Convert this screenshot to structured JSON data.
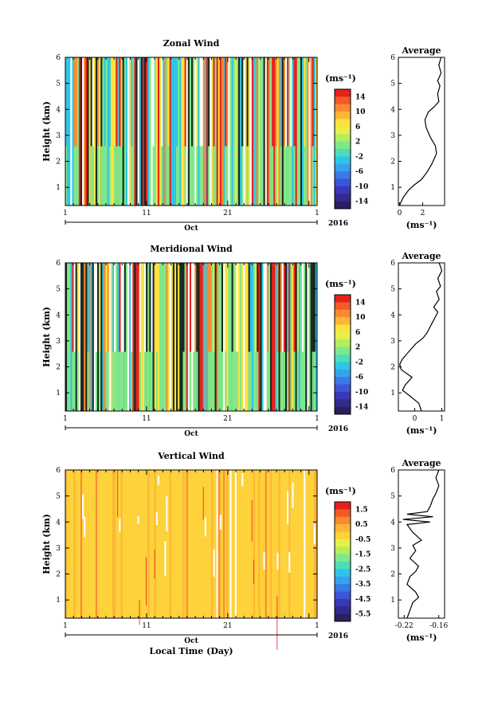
{
  "chart_data": [
    {
      "type": "heatmap",
      "key": "zonal",
      "title": "Zonal Wind",
      "ylabel": "Height (km)",
      "xlabel": "",
      "ylim": [
        0.3,
        6
      ],
      "yticks": [
        "1",
        "2",
        "3",
        "4",
        "5",
        "6"
      ],
      "xticks": [
        "1",
        "11",
        "21",
        "1"
      ],
      "month_label": "Oct",
      "year_label": "2016",
      "colorbar": {
        "unit": "(ms⁻¹)",
        "range": [
          -16,
          16
        ],
        "ticks": [
          "14",
          "10",
          "6",
          "2",
          "-2",
          "-6",
          "-10",
          "-14"
        ],
        "colors": [
          "#e8201c",
          "#f55a25",
          "#fb8a2f",
          "#fdb636",
          "#fde23d",
          "#e6f048",
          "#b4ee5c",
          "#7ee88a",
          "#4fdcb9",
          "#2ec6e6",
          "#35a2f0",
          "#3a7ae8",
          "#3c55d6",
          "#3a38b8",
          "#322a8e",
          "#2a2060"
        ]
      },
      "average_profile": {
        "title": "Average",
        "xlabel": "(ms⁻¹)",
        "xlim": [
          -0.1,
          3.9
        ],
        "xticks": [
          "0",
          "2"
        ],
        "heights": [
          0.3,
          0.6,
          0.9,
          1.1,
          1.3,
          1.6,
          1.9,
          2.1,
          2.3,
          2.6,
          2.9,
          3.1,
          3.3,
          3.6,
          3.9,
          4.1,
          4.3,
          4.6,
          4.9,
          5.1,
          5.4,
          5.7,
          6.0
        ],
        "values": [
          0.0,
          0.3,
          0.8,
          1.3,
          1.9,
          2.4,
          2.8,
          3.0,
          3.2,
          3.1,
          2.7,
          2.5,
          2.3,
          2.2,
          2.5,
          3.0,
          3.4,
          3.3,
          3.5,
          3.3,
          3.6,
          3.4,
          3.6
        ]
      }
    },
    {
      "type": "heatmap",
      "key": "meridional",
      "title": "Meridional Wind",
      "ylabel": "Height (km)",
      "xlabel": "",
      "ylim": [
        0.3,
        6
      ],
      "yticks": [
        "1",
        "2",
        "3",
        "4",
        "5",
        "6"
      ],
      "xticks": [
        "1",
        "11",
        "21",
        "1"
      ],
      "month_label": "Oct",
      "year_label": "2016",
      "colorbar": {
        "unit": "(ms⁻¹)",
        "range": [
          -16,
          16
        ],
        "ticks": [
          "14",
          "10",
          "6",
          "2",
          "-2",
          "-6",
          "-10",
          "-14"
        ],
        "colors": [
          "#e8201c",
          "#f55a25",
          "#fb8a2f",
          "#fdb636",
          "#fde23d",
          "#e6f048",
          "#b4ee5c",
          "#7ee88a",
          "#4fdcb9",
          "#2ec6e6",
          "#35a2f0",
          "#3a7ae8",
          "#3c55d6",
          "#3a38b8",
          "#322a8e",
          "#2a2060"
        ]
      },
      "average_profile": {
        "title": "Average",
        "xlabel": "(ms⁻¹)",
        "xlim": [
          -0.6,
          1.1
        ],
        "xticks": [
          "0",
          "1"
        ],
        "heights": [
          0.3,
          0.6,
          0.9,
          1.1,
          1.3,
          1.6,
          1.9,
          2.1,
          2.3,
          2.6,
          2.9,
          3.1,
          3.3,
          3.6,
          3.9,
          4.1,
          4.3,
          4.6,
          4.9,
          5.1,
          5.4,
          5.7,
          6.0
        ],
        "values": [
          0.25,
          0.15,
          -0.2,
          -0.45,
          -0.35,
          -0.1,
          -0.5,
          -0.55,
          -0.45,
          -0.2,
          0.05,
          0.3,
          0.45,
          0.6,
          0.75,
          0.85,
          0.7,
          0.9,
          0.8,
          0.95,
          0.85,
          1.0,
          0.9
        ]
      }
    },
    {
      "type": "heatmap",
      "key": "vertical",
      "title": "Vertical Wind",
      "ylabel": "Height (km)",
      "xlabel": "Local Time (Day)",
      "ylim": [
        0.3,
        6
      ],
      "yticks": [
        "1",
        "2",
        "3",
        "4",
        "5",
        "6"
      ],
      "xticks": [
        "1",
        "11",
        "21",
        "1"
      ],
      "month_label": "Oct",
      "year_label": "2016",
      "colorbar": {
        "unit": "(ms⁻¹)",
        "range": [
          -6,
          2
        ],
        "ticks": [
          "1.5",
          "0.5",
          "-0.5",
          "-1.5",
          "-2.5",
          "-3.5",
          "-4.5",
          "-5.5"
        ],
        "colors": [
          "#e8201c",
          "#f55a25",
          "#fb8a2f",
          "#fdb636",
          "#fdd23a",
          "#e6f048",
          "#b4ee5c",
          "#7ee88a",
          "#4fdcb9",
          "#2ec6e6",
          "#35a2f0",
          "#3a7ae8",
          "#3c55d6",
          "#3a38b8",
          "#322a8e",
          "#2a2060"
        ]
      },
      "average_profile": {
        "title": "Average",
        "xlabel": "(ms⁻¹)",
        "xlim": [
          -0.23,
          -0.15
        ],
        "xticks": [
          "-0.22",
          "-0.16"
        ],
        "heights": [
          0.3,
          0.6,
          0.9,
          1.1,
          1.3,
          1.6,
          1.9,
          2.1,
          2.3,
          2.6,
          2.9,
          3.1,
          3.3,
          3.6,
          3.9,
          4.0,
          4.1,
          4.2,
          4.3,
          4.4,
          4.6,
          4.9,
          5.1,
          5.4,
          5.7,
          6.0
        ],
        "values": [
          -0.215,
          -0.21,
          -0.205,
          -0.195,
          -0.2,
          -0.215,
          -0.21,
          -0.2,
          -0.195,
          -0.21,
          -0.2,
          -0.205,
          -0.19,
          -0.205,
          -0.215,
          -0.175,
          -0.222,
          -0.17,
          -0.215,
          -0.18,
          -0.175,
          -0.17,
          -0.165,
          -0.16,
          -0.165,
          -0.16
        ]
      }
    }
  ]
}
